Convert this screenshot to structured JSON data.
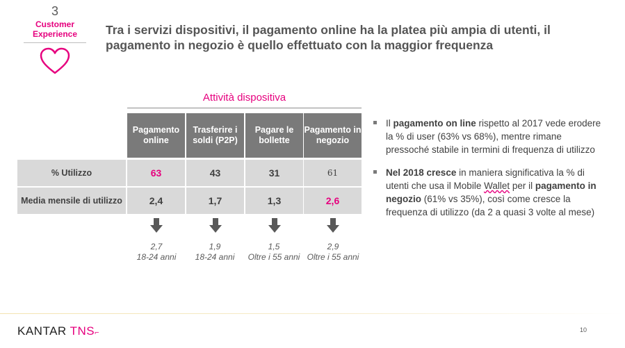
{
  "section": {
    "number": "3",
    "label_line1": "Customer",
    "label_line2": "Experience",
    "icon": "heart-icon"
  },
  "title": "Tra i servizi dispositivi, il pagamento online ha la platea più ampia di utenti, il pagamento in negozio è quello effettuato con la maggior frequenza",
  "table": {
    "caption": "Attività dispositiva",
    "columns": [
      {
        "line1": "Pagamento",
        "line2": "online"
      },
      {
        "line1": "Trasferire i",
        "line2": "soldi (P2P)"
      },
      {
        "line1": "Pagare le",
        "line2": "bollette"
      },
      {
        "line1": "Pagamento in",
        "line2": "negozio"
      }
    ],
    "rows": [
      {
        "label": "% Utilizzo",
        "values": [
          "63",
          "43",
          "31",
          "61"
        ]
      },
      {
        "label": "Media mensile di utilizzo",
        "values": [
          "2,4",
          "1,7",
          "1,3",
          "2,6"
        ]
      }
    ],
    "notes": [
      {
        "value": "2,7",
        "segment": "18-24 anni"
      },
      {
        "value": "1,9",
        "segment": "18-24 anni"
      },
      {
        "value": "1,5",
        "segment": "Oltre i 55 anni"
      },
      {
        "value": "2,9",
        "segment": "Oltre i 55 anni"
      }
    ]
  },
  "bullets": {
    "b1": {
      "t1": "Il ",
      "b1": "pagamento on line",
      "t2": " rispetto al 2017 vede erodere la % di user (63% vs 68%), mentre rimane pressoché stabile in termini di frequenza di utilizzo"
    },
    "b2": {
      "b1": "Nel 2018 cresce",
      "t1": " in maniera significativa la % di utenti che usa il Mobile ",
      "w1": "Wallet",
      "t2": " per il ",
      "b2": "pagamento in negozio",
      "t3": " (61% vs 35%), così come cresce la frequenza di utilizzo (da 2 a quasi 3 volte al mese)"
    }
  },
  "footer": {
    "logo_kantar": "KANTAR",
    "logo_tns": "TNS",
    "logo_mark": "⌐",
    "page_number": "10"
  },
  "colors": {
    "accent": "#e6007e",
    "header_gray": "#7a7a7a",
    "cell_gray": "#d9d9d9"
  }
}
